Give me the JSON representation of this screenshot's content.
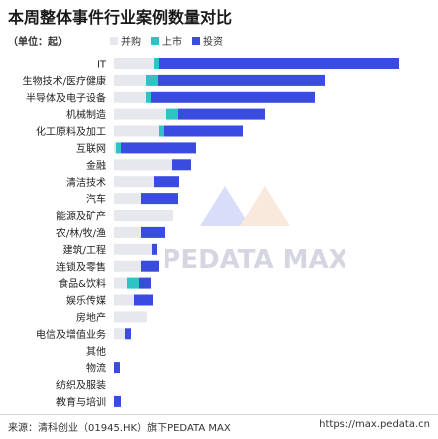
{
  "title": "本周整体事件行业案例数量对比",
  "unit_label": "（单位：起）",
  "colors": {
    "merger": "#e6e8ee",
    "ipo": "#2ec4c4",
    "investment": "#3a4be0"
  },
  "watermark_text": "PEDATA MAX",
  "footer": {
    "source": "来源：清科创业（01945.HK）旗下PEDATA MAX",
    "url": "https://max.pedata.cn"
  },
  "chart_data": {
    "type": "bar",
    "orientation": "horizontal",
    "stacked": true,
    "title": "本周整体事件行业案例数量对比",
    "categories": [
      "IT",
      "生物技术/医疗健康",
      "半导体及电子设备",
      "机械制造",
      "化工原料及加工",
      "互联网",
      "金融",
      "清洁技术",
      "汽车",
      "能源及矿产",
      "农/林/牧/渔",
      "建筑/工程",
      "连锁及零售",
      "食品&饮料",
      "娱乐传媒",
      "房地产",
      "电信及增值业务",
      "其他",
      "物流",
      "纺织及服装",
      "教育与培训"
    ],
    "series": [
      {
        "name": "并购",
        "values": [
          40,
          32,
          32,
          52,
          45,
          2,
          58,
          40,
          27,
          59,
          27,
          38,
          27,
          13,
          20,
          33,
          11,
          0,
          0,
          0,
          0
        ]
      },
      {
        "name": "上市",
        "values": [
          5,
          12,
          5,
          12,
          5,
          5,
          0,
          0,
          0,
          0,
          0,
          0,
          0,
          12,
          0,
          0,
          0,
          0,
          0,
          0,
          0
        ]
      },
      {
        "name": "投资",
        "values": [
          240,
          167,
          164,
          87,
          79,
          75,
          19,
          25,
          37,
          0,
          24,
          5,
          18,
          12,
          19,
          0,
          6,
          0,
          6,
          0,
          7
        ]
      }
    ],
    "xlim": [
      0,
      290
    ],
    "grid": false,
    "legend_position": "top"
  }
}
